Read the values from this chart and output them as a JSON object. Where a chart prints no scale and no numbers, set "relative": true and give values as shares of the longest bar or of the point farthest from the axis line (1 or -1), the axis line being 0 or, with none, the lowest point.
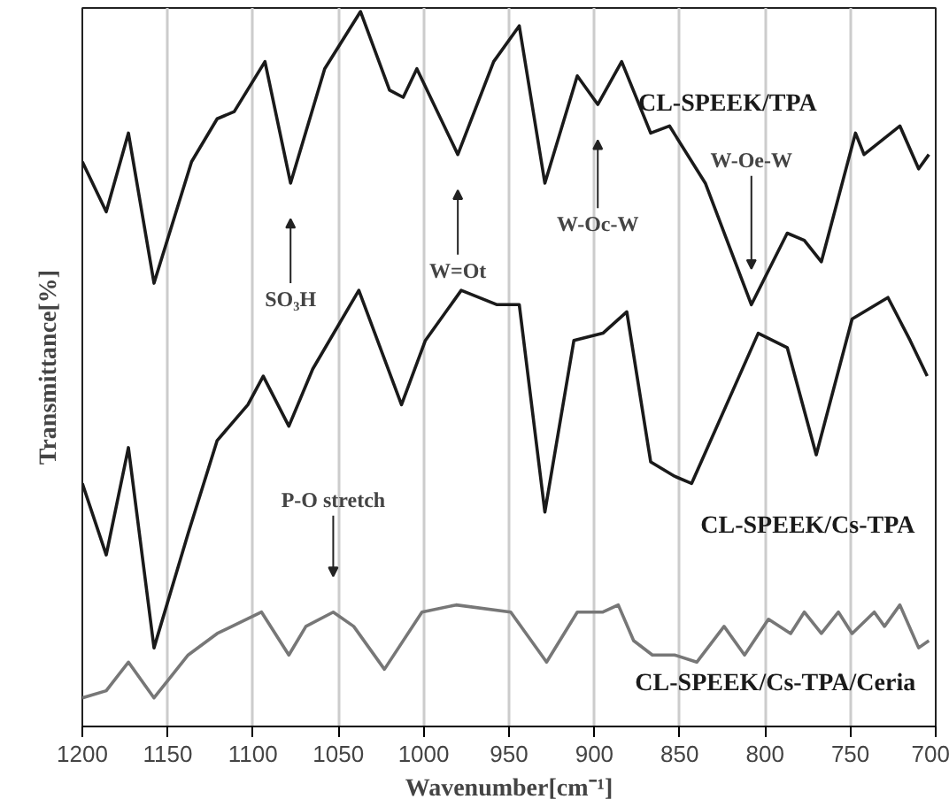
{
  "chart_data": {
    "type": "line",
    "relative": true,
    "xlabel": "Wavenumber[cm⁻¹]",
    "ylabel": "Transmittance[%]",
    "xlim": [
      1200,
      700
    ],
    "xticks": [
      1200,
      1150,
      1100,
      1050,
      1000,
      950,
      900,
      850,
      800,
      750,
      700
    ],
    "grid": "x",
    "tick_labels": "x",
    "marker": "none",
    "line_style": "solid",
    "series": [
      {
        "name": "CL-SPEEK/TPA",
        "color": "#1a1a1a",
        "x": [
          1200,
          1186,
          1173,
          1158,
          1136,
          1121,
          1111,
          1093,
          1078,
          1058,
          1037,
          1020,
          1012,
          1004,
          980,
          959,
          944,
          929,
          910,
          898,
          884,
          867,
          856,
          835,
          808,
          787,
          777,
          767,
          747,
          742,
          721,
          710,
          704
        ],
        "values": [
          0.79,
          0.72,
          0.83,
          0.62,
          0.79,
          0.85,
          0.86,
          0.93,
          0.76,
          0.92,
          1.0,
          0.89,
          0.88,
          0.92,
          0.8,
          0.93,
          0.98,
          0.76,
          0.91,
          0.87,
          0.93,
          0.83,
          0.84,
          0.76,
          0.59,
          0.69,
          0.68,
          0.65,
          0.83,
          0.8,
          0.84,
          0.78,
          0.8
        ]
      },
      {
        "name": "CL-SPEEK/Cs-TPA",
        "color": "#1a1a1a",
        "x": [
          1200,
          1186,
          1173,
          1158,
          1138,
          1121,
          1103,
          1094,
          1079,
          1065,
          1038,
          1013,
          999,
          978,
          957,
          944,
          929,
          912,
          895,
          881,
          867,
          853,
          843,
          804,
          787,
          770,
          749,
          728,
          715,
          705
        ],
        "values": [
          0.34,
          0.24,
          0.39,
          0.11,
          0.27,
          0.4,
          0.45,
          0.49,
          0.42,
          0.5,
          0.61,
          0.45,
          0.54,
          0.61,
          0.59,
          0.59,
          0.3,
          0.54,
          0.55,
          0.58,
          0.37,
          0.35,
          0.34,
          0.55,
          0.53,
          0.38,
          0.57,
          0.6,
          0.54,
          0.49
        ]
      },
      {
        "name": "CL-SPEEK/Cs-TPA/Ceria",
        "color": "#777777",
        "x": [
          1200,
          1186,
          1173,
          1158,
          1138,
          1121,
          1095,
          1079,
          1069,
          1053,
          1041,
          1023,
          1001,
          981,
          949,
          928,
          910,
          895,
          886,
          877,
          866,
          853,
          840,
          824,
          812,
          798,
          785,
          777,
          767,
          757,
          749,
          736,
          730,
          721,
          710,
          704
        ],
        "values": [
          0.04,
          0.05,
          0.09,
          0.04,
          0.1,
          0.13,
          0.16,
          0.1,
          0.14,
          0.16,
          0.14,
          0.08,
          0.16,
          0.17,
          0.16,
          0.09,
          0.16,
          0.16,
          0.17,
          0.12,
          0.1,
          0.1,
          0.09,
          0.14,
          0.1,
          0.15,
          0.13,
          0.16,
          0.13,
          0.16,
          0.13,
          0.16,
          0.14,
          0.17,
          0.11,
          0.12
        ]
      }
    ],
    "annotations": [
      "SO₃H",
      "W=Ot",
      "W-Oc-W",
      "W-Oe-W",
      "P-O stretch"
    ]
  }
}
